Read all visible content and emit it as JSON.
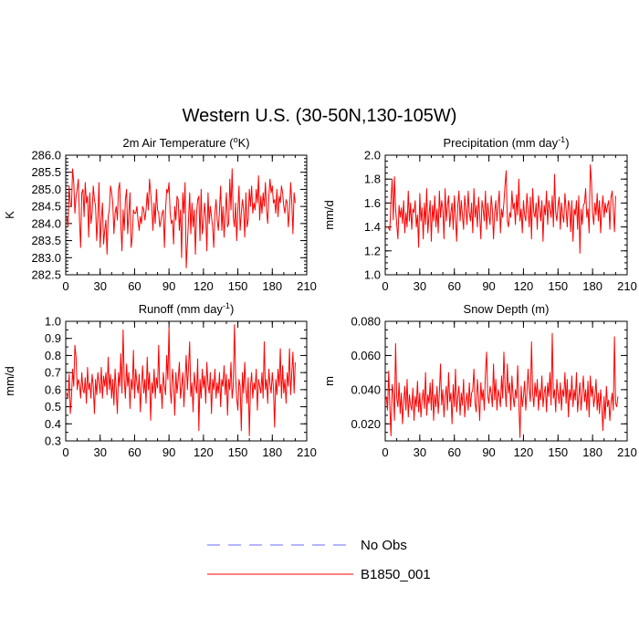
{
  "figure": {
    "title": "Western U.S. (30-50N,130-105W)"
  },
  "legend": {
    "items": [
      {
        "label": "No Obs",
        "color": "#6b6bff",
        "style": "dashed"
      },
      {
        "label": "B1850_001",
        "color": "#ff0000",
        "style": "solid"
      }
    ]
  },
  "chart_data": [
    {
      "type": "line",
      "title": "2m Air Temperature (°K)",
      "title_main": "2m Air Temperature (",
      "title_sup": "o",
      "title_end": "K)",
      "ylabel": "K",
      "xlim": [
        0,
        210
      ],
      "ylim": [
        282.5,
        286.0
      ],
      "xticks": [
        0,
        30,
        60,
        90,
        120,
        150,
        180,
        210
      ],
      "yticks": [
        282.5,
        283.0,
        283.5,
        284.0,
        284.5,
        285.0,
        285.5,
        286.0
      ],
      "ytick_labels": [
        "282.5",
        "283.0",
        "283.5",
        "284.0",
        "284.5",
        "285.0",
        "285.5",
        "286.0"
      ],
      "y_minor_step": 0.1,
      "series": [
        {
          "name": "B1850_001",
          "color": "#ff0000",
          "x0": 1,
          "dx": 1,
          "values": [
            284.2,
            283.9,
            285.1,
            284.6,
            284.5,
            285.6,
            285.2,
            284.3,
            284.8,
            285.0,
            285.3,
            284.1,
            283.3,
            284.9,
            285.0,
            284.2,
            285.2,
            284.6,
            284.8,
            283.6,
            284.9,
            284.0,
            284.3,
            285.1,
            284.7,
            284.5,
            283.5,
            284.2,
            285.2,
            283.3,
            284.1,
            284.6,
            283.4,
            283.8,
            284.1,
            283.1,
            284.2,
            284.4,
            285.1,
            284.9,
            284.6,
            283.7,
            284.3,
            284.5,
            284.1,
            285.0,
            285.2,
            284.0,
            283.2,
            284.4,
            283.8,
            284.7,
            285.0,
            283.7,
            284.3,
            284.9,
            283.3,
            283.6,
            284.4,
            284.3,
            284.3,
            284.5,
            284.1,
            283.8,
            284.2,
            284.0,
            284.5,
            284.4,
            284.1,
            284.4,
            284.9,
            284.4,
            285.3,
            284.9,
            284.5,
            283.8,
            284.6,
            284.0,
            285.0,
            284.4,
            284.3,
            283.9,
            284.1,
            284.3,
            284.4,
            283.3,
            284.4,
            285.0,
            284.9,
            285.2,
            284.3,
            284.0,
            284.1,
            283.4,
            284.5,
            284.1,
            284.8,
            284.7,
            283.8,
            284.4,
            283.0,
            284.9,
            284.3,
            285.2,
            282.7,
            283.4,
            284.1,
            284.9,
            283.7,
            284.6,
            283.9,
            284.4,
            283.1,
            284.3,
            284.7,
            284.8,
            283.5,
            285.0,
            283.7,
            284.0,
            284.6,
            284.2,
            283.2,
            284.9,
            284.0,
            284.5,
            284.2,
            283.9,
            283.3,
            284.3,
            284.7,
            284.1,
            283.8,
            284.4,
            285.1,
            283.8,
            284.5,
            283.6,
            284.3,
            284.9,
            283.9,
            284.0,
            285.3,
            284.4,
            285.6,
            284.2,
            283.9,
            284.6,
            283.5,
            284.4,
            285.1,
            283.8,
            284.3,
            284.7,
            284.4,
            283.6,
            284.9,
            283.9,
            284.1,
            285.0,
            284.5,
            285.1,
            284.3,
            284.6,
            284.4,
            285.0,
            284.6,
            285.4,
            284.1,
            284.8,
            284.3,
            284.9,
            284.5,
            285.2,
            284.4,
            284.0,
            284.8,
            285.3,
            284.9,
            285.1,
            284.6,
            284.7,
            284.3,
            285.0,
            284.2,
            284.8,
            284.6,
            285.1,
            284.9,
            284.5,
            284.3,
            284.7,
            284.6,
            283.9,
            284.4,
            285.2,
            284.6,
            283.7,
            284.9,
            284.6
          ]
        }
      ]
    },
    {
      "type": "line",
      "title": "Precipitation (mm day-1)",
      "title_main": "Precipitation (mm day",
      "title_sup": "-1",
      "title_end": ")",
      "ylabel": "mm/d",
      "xlim": [
        0,
        210
      ],
      "ylim": [
        1.0,
        2.0
      ],
      "xticks": [
        0,
        30,
        60,
        90,
        120,
        150,
        180,
        210
      ],
      "yticks": [
        1.0,
        1.2,
        1.4,
        1.6,
        1.8,
        2.0
      ],
      "ytick_labels": [
        "1.0",
        "1.2",
        "1.4",
        "1.6",
        "1.8",
        "2.0"
      ],
      "y_minor_step": 0.05,
      "series": [
        {
          "name": "B1850_001",
          "color": "#ff0000",
          "x0": 1,
          "dx": 1,
          "values": [
            1.4,
            1.4,
            1.39,
            1.37,
            1.62,
            1.8,
            1.46,
            1.82,
            1.55,
            1.42,
            1.3,
            1.58,
            1.48,
            1.56,
            1.43,
            1.62,
            1.35,
            1.52,
            1.4,
            1.7,
            1.45,
            1.6,
            1.38,
            1.55,
            1.52,
            1.62,
            1.4,
            1.5,
            1.23,
            1.68,
            1.45,
            1.56,
            1.3,
            1.6,
            1.42,
            1.72,
            1.35,
            1.5,
            1.62,
            1.28,
            1.58,
            1.45,
            1.66,
            1.4,
            1.55,
            1.35,
            1.7,
            1.48,
            1.62,
            1.55,
            1.3,
            1.72,
            1.45,
            1.58,
            1.66,
            1.4,
            1.52,
            1.6,
            1.38,
            1.66,
            1.48,
            1.28,
            1.58,
            1.7,
            1.45,
            1.62,
            1.5,
            1.38,
            1.66,
            1.55,
            1.42,
            1.7,
            1.52,
            1.45,
            1.6,
            1.35,
            1.72,
            1.48,
            1.58,
            1.4,
            1.65,
            1.5,
            1.3,
            1.62,
            1.55,
            1.45,
            1.7,
            1.38,
            1.6,
            1.5,
            1.42,
            1.66,
            1.55,
            1.3,
            1.52,
            1.62,
            1.45,
            1.58,
            1.7,
            1.35,
            1.55,
            1.48,
            1.6,
            1.75,
            1.87,
            1.45,
            1.4,
            1.52,
            1.48,
            1.7,
            1.55,
            1.6,
            1.42,
            1.67,
            1.5,
            1.8,
            1.45,
            1.55,
            1.35,
            1.62,
            1.5,
            1.45,
            1.68,
            1.55,
            1.4,
            1.65,
            1.3,
            1.72,
            1.52,
            1.48,
            1.6,
            1.38,
            1.66,
            1.55,
            1.45,
            1.62,
            1.28,
            1.58,
            1.5,
            1.7,
            1.42,
            1.62,
            1.55,
            1.48,
            1.66,
            1.4,
            1.84,
            1.52,
            1.45,
            1.58,
            1.65,
            1.38,
            1.6,
            1.5,
            1.44,
            1.68,
            1.55,
            1.4,
            1.62,
            1.58,
            1.36,
            1.62,
            1.28,
            1.55,
            1.5,
            1.62,
            1.38,
            1.66,
            1.18,
            1.55,
            1.42,
            1.58,
            1.6,
            1.72,
            1.48,
            1.55,
            1.35,
            1.92,
            1.78,
            1.52,
            1.42,
            1.6,
            1.5,
            1.68,
            1.45,
            1.62,
            1.35,
            1.55,
            1.66,
            1.48,
            1.6,
            1.52,
            1.58,
            1.62,
            1.38,
            1.65,
            1.7,
            1.55,
            1.36,
            1.66
          ]
        }
      ]
    },
    {
      "type": "line",
      "title": "Runoff (mm day-1)",
      "title_main": "Runoff (mm day",
      "title_sup": "-1",
      "title_end": ")",
      "ylabel": "mm/d",
      "xlim": [
        0,
        210
      ],
      "ylim": [
        0.3,
        1.0
      ],
      "xticks": [
        0,
        30,
        60,
        90,
        120,
        150,
        180,
        210
      ],
      "yticks": [
        0.3,
        0.4,
        0.5,
        0.6,
        0.7,
        0.8,
        0.9,
        1.0
      ],
      "ytick_labels": [
        "0.3",
        "0.4",
        "0.5",
        "0.6",
        "0.7",
        "0.8",
        "0.9",
        "1.0"
      ],
      "y_minor_step": 0.05,
      "series": [
        {
          "name": "B1850_001",
          "color": "#ff0000",
          "x0": 1,
          "dx": 1,
          "values": [
            0.58,
            0.55,
            0.69,
            0.46,
            0.55,
            0.72,
            0.62,
            0.86,
            0.79,
            0.6,
            0.66,
            0.63,
            0.55,
            0.7,
            0.6,
            0.58,
            0.67,
            0.52,
            0.73,
            0.6,
            0.64,
            0.55,
            0.69,
            0.62,
            0.46,
            0.66,
            0.57,
            0.7,
            0.64,
            0.58,
            0.73,
            0.55,
            0.68,
            0.62,
            0.7,
            0.57,
            0.79,
            0.6,
            0.69,
            0.55,
            0.66,
            0.51,
            0.72,
            0.6,
            0.46,
            0.7,
            0.62,
            0.81,
            0.58,
            0.95,
            0.66,
            0.55,
            0.75,
            0.62,
            0.7,
            0.49,
            0.66,
            0.6,
            0.83,
            0.55,
            0.72,
            0.64,
            0.58,
            0.69,
            0.47,
            0.62,
            0.74,
            0.58,
            0.66,
            0.52,
            0.79,
            0.6,
            0.7,
            0.42,
            0.64,
            0.58,
            0.72,
            0.55,
            0.67,
            0.61,
            0.86,
            0.58,
            0.63,
            0.49,
            0.7,
            0.62,
            0.57,
            0.8,
            0.66,
            0.97,
            0.6,
            0.52,
            0.72,
            0.64,
            0.45,
            0.7,
            0.58,
            0.66,
            0.76,
            0.55,
            0.62,
            0.7,
            0.5,
            0.66,
            0.8,
            0.6,
            0.73,
            0.88,
            0.56,
            0.64,
            0.47,
            0.7,
            0.62,
            0.58,
            0.78,
            0.36,
            0.66,
            0.55,
            0.72,
            0.61,
            0.68,
            0.52,
            0.76,
            0.63,
            0.58,
            0.7,
            0.46,
            0.66,
            0.6,
            0.72,
            0.55,
            0.64,
            0.58,
            0.7,
            0.5,
            0.66,
            0.62,
            0.74,
            0.57,
            0.69,
            0.45,
            0.66,
            0.6,
            0.76,
            0.55,
            0.62,
            0.98,
            0.68,
            0.55,
            0.48,
            0.66,
            0.62,
            0.36,
            0.7,
            0.58,
            0.76,
            0.6,
            0.52,
            0.67,
            0.33,
            0.62,
            0.7,
            0.55,
            0.64,
            0.6,
            0.72,
            0.48,
            0.66,
            0.62,
            0.58,
            0.7,
            0.55,
            0.88,
            0.6,
            0.66,
            0.52,
            0.72,
            0.63,
            0.58,
            0.7,
            0.61,
            0.38,
            0.66,
            0.57,
            0.72,
            0.62,
            0.84,
            0.55,
            0.74,
            0.58,
            0.66,
            0.52,
            0.7,
            0.62,
            0.84,
            0.57,
            0.7,
            0.82,
            0.58,
            0.76
          ]
        }
      ]
    },
    {
      "type": "line",
      "title": "Snow Depth (m)",
      "title_main": "Snow Depth (m)",
      "title_sup": "",
      "title_end": "",
      "ylabel": "m",
      "xlim": [
        0,
        210
      ],
      "ylim": [
        0.01,
        0.08
      ],
      "xticks": [
        0,
        30,
        60,
        90,
        120,
        150,
        180,
        210
      ],
      "yticks": [
        0.02,
        0.04,
        0.06,
        0.08
      ],
      "ytick_labels": [
        "0.020",
        "0.040",
        "0.060",
        "0.080"
      ],
      "y_minor_step": 0.005,
      "series": [
        {
          "name": "B1850_001",
          "color": "#ff0000",
          "x0": 1,
          "dx": 1,
          "values": [
            0.036,
            0.028,
            0.051,
            0.03,
            0.013,
            0.043,
            0.038,
            0.022,
            0.067,
            0.035,
            0.03,
            0.044,
            0.026,
            0.038,
            0.02,
            0.033,
            0.042,
            0.028,
            0.046,
            0.024,
            0.037,
            0.031,
            0.028,
            0.041,
            0.022,
            0.036,
            0.03,
            0.045,
            0.027,
            0.038,
            0.024,
            0.034,
            0.04,
            0.029,
            0.05,
            0.025,
            0.037,
            0.032,
            0.044,
            0.028,
            0.046,
            0.022,
            0.037,
            0.03,
            0.042,
            0.026,
            0.038,
            0.055,
            0.031,
            0.04,
            0.024,
            0.036,
            0.042,
            0.028,
            0.05,
            0.033,
            0.038,
            0.02,
            0.043,
            0.03,
            0.052,
            0.027,
            0.036,
            0.042,
            0.025,
            0.038,
            0.031,
            0.046,
            0.024,
            0.033,
            0.038,
            0.028,
            0.044,
            0.03,
            0.038,
            0.04,
            0.052,
            0.032,
            0.027,
            0.046,
            0.036,
            0.022,
            0.044,
            0.034,
            0.04,
            0.028,
            0.05,
            0.062,
            0.036,
            0.032,
            0.042,
            0.038,
            0.03,
            0.055,
            0.034,
            0.046,
            0.028,
            0.04,
            0.036,
            0.03,
            0.048,
            0.035,
            0.062,
            0.042,
            0.03,
            0.055,
            0.038,
            0.044,
            0.028,
            0.048,
            0.036,
            0.03,
            0.04,
            0.035,
            0.054,
            0.032,
            0.012,
            0.042,
            0.03,
            0.036,
            0.045,
            0.028,
            0.038,
            0.052,
            0.04,
            0.033,
            0.068,
            0.038,
            0.03,
            0.044,
            0.036,
            0.046,
            0.028,
            0.04,
            0.034,
            0.048,
            0.03,
            0.038,
            0.042,
            0.027,
            0.044,
            0.036,
            0.05,
            0.031,
            0.073,
            0.035,
            0.04,
            0.027,
            0.046,
            0.038,
            0.032,
            0.044,
            0.028,
            0.04,
            0.036,
            0.05,
            0.032,
            0.046,
            0.024,
            0.04,
            0.034,
            0.048,
            0.03,
            0.04,
            0.034,
            0.05,
            0.027,
            0.036,
            0.044,
            0.028,
            0.038,
            0.048,
            0.033,
            0.04,
            0.028,
            0.045,
            0.024,
            0.048,
            0.036,
            0.042,
            0.03,
            0.036,
            0.046,
            0.028,
            0.038,
            0.026,
            0.04,
            0.03,
            0.016,
            0.036,
            0.023,
            0.042,
            0.03,
            0.034,
            0.022,
            0.032,
            0.038,
            0.028,
            0.071,
            0.032,
            0.03,
            0.036
          ]
        }
      ]
    }
  ]
}
